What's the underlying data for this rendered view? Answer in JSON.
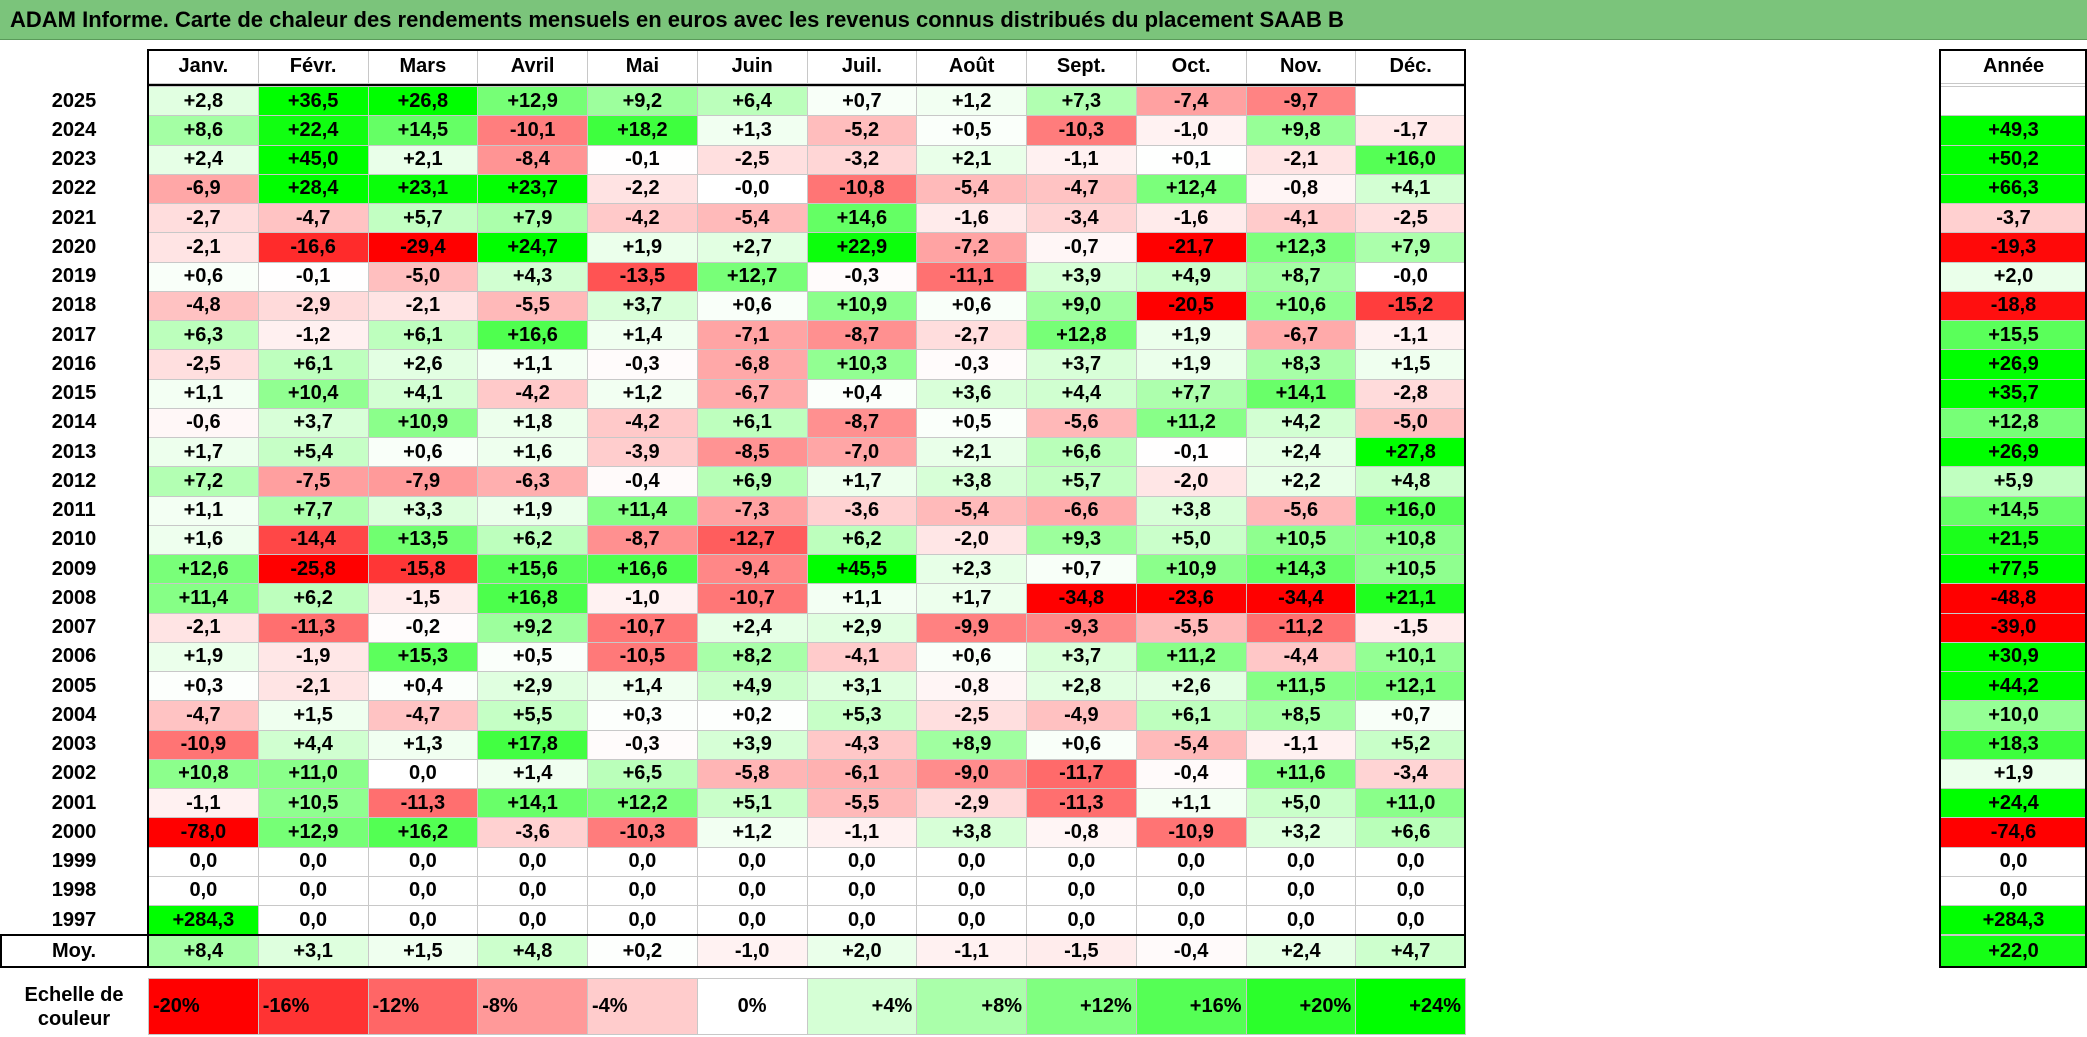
{
  "title": "ADAM Informe. Carte de chaleur des rendements mensuels en euros avec les revenus connus distribués du placement SAAB B",
  "chart_data": {
    "type": "heatmap",
    "title": "ADAM Informe. Carte de chaleur des rendements mensuels en euros avec les revenus connus distribués du placement SAAB B",
    "months": [
      "Janv.",
      "Févr.",
      "Mars",
      "Avril",
      "Mai",
      "Juin",
      "Juil.",
      "Août",
      "Sept.",
      "Oct.",
      "Nov.",
      "Déc."
    ],
    "year_header": "Année",
    "rows": [
      {
        "year": "2025",
        "values": [
          "+2,8",
          "+36,5",
          "+26,8",
          "+12,9",
          "+9,2",
          "+6,4",
          "+0,7",
          "+1,2",
          "+7,3",
          "-7,4",
          "-9,7",
          ""
        ],
        "annual": ""
      },
      {
        "year": "2024",
        "values": [
          "+8,6",
          "+22,4",
          "+14,5",
          "-10,1",
          "+18,2",
          "+1,3",
          "-5,2",
          "+0,5",
          "-10,3",
          "-1,0",
          "+9,8",
          "-1,7"
        ],
        "annual": "+49,3"
      },
      {
        "year": "2023",
        "values": [
          "+2,4",
          "+45,0",
          "+2,1",
          "-8,4",
          "-0,1",
          "-2,5",
          "-3,2",
          "+2,1",
          "-1,1",
          "+0,1",
          "-2,1",
          "+16,0"
        ],
        "annual": "+50,2"
      },
      {
        "year": "2022",
        "values": [
          "-6,9",
          "+28,4",
          "+23,1",
          "+23,7",
          "-2,2",
          "-0,0",
          "-10,8",
          "-5,4",
          "-4,7",
          "+12,4",
          "-0,8",
          "+4,1"
        ],
        "annual": "+66,3"
      },
      {
        "year": "2021",
        "values": [
          "-2,7",
          "-4,7",
          "+5,7",
          "+7,9",
          "-4,2",
          "-5,4",
          "+14,6",
          "-1,6",
          "-3,4",
          "-1,6",
          "-4,1",
          "-2,5"
        ],
        "annual": "-3,7"
      },
      {
        "year": "2020",
        "values": [
          "-2,1",
          "-16,6",
          "-29,4",
          "+24,7",
          "+1,9",
          "+2,7",
          "+22,9",
          "-7,2",
          "-0,7",
          "-21,7",
          "+12,3",
          "+7,9"
        ],
        "annual": "-19,3"
      },
      {
        "year": "2019",
        "values": [
          "+0,6",
          "-0,1",
          "-5,0",
          "+4,3",
          "-13,5",
          "+12,7",
          "-0,3",
          "-11,1",
          "+3,9",
          "+4,9",
          "+8,7",
          "-0,0"
        ],
        "annual": "+2,0"
      },
      {
        "year": "2018",
        "values": [
          "-4,8",
          "-2,9",
          "-2,1",
          "-5,5",
          "+3,7",
          "+0,6",
          "+10,9",
          "+0,6",
          "+9,0",
          "-20,5",
          "+10,6",
          "-15,2"
        ],
        "annual": "-18,8"
      },
      {
        "year": "2017",
        "values": [
          "+6,3",
          "-1,2",
          "+6,1",
          "+16,6",
          "+1,4",
          "-7,1",
          "-8,7",
          "-2,7",
          "+12,8",
          "+1,9",
          "-6,7",
          "-1,1"
        ],
        "annual": "+15,5"
      },
      {
        "year": "2016",
        "values": [
          "-2,5",
          "+6,1",
          "+2,6",
          "+1,1",
          "-0,3",
          "-6,8",
          "+10,3",
          "-0,3",
          "+3,7",
          "+1,9",
          "+8,3",
          "+1,5"
        ],
        "annual": "+26,9"
      },
      {
        "year": "2015",
        "values": [
          "+1,1",
          "+10,4",
          "+4,1",
          "-4,2",
          "+1,2",
          "-6,7",
          "+0,4",
          "+3,6",
          "+4,4",
          "+7,7",
          "+14,1",
          "-2,8"
        ],
        "annual": "+35,7"
      },
      {
        "year": "2014",
        "values": [
          "-0,6",
          "+3,7",
          "+10,9",
          "+1,8",
          "-4,2",
          "+6,1",
          "-8,7",
          "+0,5",
          "-5,6",
          "+11,2",
          "+4,2",
          "-5,0"
        ],
        "annual": "+12,8"
      },
      {
        "year": "2013",
        "values": [
          "+1,7",
          "+5,4",
          "+0,6",
          "+1,6",
          "-3,9",
          "-8,5",
          "-7,0",
          "+2,1",
          "+6,6",
          "-0,1",
          "+2,4",
          "+27,8"
        ],
        "annual": "+26,9"
      },
      {
        "year": "2012",
        "values": [
          "+7,2",
          "-7,5",
          "-7,9",
          "-6,3",
          "-0,4",
          "+6,9",
          "+1,7",
          "+3,8",
          "+5,7",
          "-2,0",
          "+2,2",
          "+4,8"
        ],
        "annual": "+5,9"
      },
      {
        "year": "2011",
        "values": [
          "+1,1",
          "+7,7",
          "+3,3",
          "+1,9",
          "+11,4",
          "-7,3",
          "-3,6",
          "-5,4",
          "-6,6",
          "+3,8",
          "-5,6",
          "+16,0"
        ],
        "annual": "+14,5"
      },
      {
        "year": "2010",
        "values": [
          "+1,6",
          "-14,4",
          "+13,5",
          "+6,2",
          "-8,7",
          "-12,7",
          "+6,2",
          "-2,0",
          "+9,3",
          "+5,0",
          "+10,5",
          "+10,8"
        ],
        "annual": "+21,5"
      },
      {
        "year": "2009",
        "values": [
          "+12,6",
          "-25,8",
          "-15,8",
          "+15,6",
          "+16,6",
          "-9,4",
          "+45,5",
          "+2,3",
          "+0,7",
          "+10,9",
          "+14,3",
          "+10,5"
        ],
        "annual": "+77,5"
      },
      {
        "year": "2008",
        "values": [
          "+11,4",
          "+6,2",
          "-1,5",
          "+16,8",
          "-1,0",
          "-10,7",
          "+1,1",
          "+1,7",
          "-34,8",
          "-23,6",
          "-34,4",
          "+21,1"
        ],
        "annual": "-48,8"
      },
      {
        "year": "2007",
        "values": [
          "-2,1",
          "-11,3",
          "-0,2",
          "+9,2",
          "-10,7",
          "+2,4",
          "+2,9",
          "-9,9",
          "-9,3",
          "-5,5",
          "-11,2",
          "-1,5"
        ],
        "annual": "-39,0"
      },
      {
        "year": "2006",
        "values": [
          "+1,9",
          "-1,9",
          "+15,3",
          "+0,5",
          "-10,5",
          "+8,2",
          "-4,1",
          "+0,6",
          "+3,7",
          "+11,2",
          "-4,4",
          "+10,1"
        ],
        "annual": "+30,9"
      },
      {
        "year": "2005",
        "values": [
          "+0,3",
          "-2,1",
          "+0,4",
          "+2,9",
          "+1,4",
          "+4,9",
          "+3,1",
          "-0,8",
          "+2,8",
          "+2,6",
          "+11,5",
          "+12,1"
        ],
        "annual": "+44,2"
      },
      {
        "year": "2004",
        "values": [
          "-4,7",
          "+1,5",
          "-4,7",
          "+5,5",
          "+0,3",
          "+0,2",
          "+5,3",
          "-2,5",
          "-4,9",
          "+6,1",
          "+8,5",
          "+0,7"
        ],
        "annual": "+10,0"
      },
      {
        "year": "2003",
        "values": [
          "-10,9",
          "+4,4",
          "+1,3",
          "+17,8",
          "-0,3",
          "+3,9",
          "-4,3",
          "+8,9",
          "+0,6",
          "-5,4",
          "-1,1",
          "+5,2"
        ],
        "annual": "+18,3"
      },
      {
        "year": "2002",
        "values": [
          "+10,8",
          "+11,0",
          "0,0",
          "+1,4",
          "+6,5",
          "-5,8",
          "-6,1",
          "-9,0",
          "-11,7",
          "-0,4",
          "+11,6",
          "-3,4"
        ],
        "annual": "+1,9"
      },
      {
        "year": "2001",
        "values": [
          "-1,1",
          "+10,5",
          "-11,3",
          "+14,1",
          "+12,2",
          "+5,1",
          "-5,5",
          "-2,9",
          "-11,3",
          "+1,1",
          "+5,0",
          "+11,0"
        ],
        "annual": "+24,4"
      },
      {
        "year": "2000",
        "values": [
          "-78,0",
          "+12,9",
          "+16,2",
          "-3,6",
          "-10,3",
          "+1,2",
          "-1,1",
          "+3,8",
          "-0,8",
          "-10,9",
          "+3,2",
          "+6,6"
        ],
        "annual": "-74,6"
      },
      {
        "year": "1999",
        "values": [
          "0,0",
          "0,0",
          "0,0",
          "0,0",
          "0,0",
          "0,0",
          "0,0",
          "0,0",
          "0,0",
          "0,0",
          "0,0",
          "0,0"
        ],
        "annual": "0,0"
      },
      {
        "year": "1998",
        "values": [
          "0,0",
          "0,0",
          "0,0",
          "0,0",
          "0,0",
          "0,0",
          "0,0",
          "0,0",
          "0,0",
          "0,0",
          "0,0",
          "0,0"
        ],
        "annual": "0,0"
      },
      {
        "year": "1997",
        "values": [
          "+284,3",
          "0,0",
          "0,0",
          "0,0",
          "0,0",
          "0,0",
          "0,0",
          "0,0",
          "0,0",
          "0,0",
          "0,0",
          "0,0"
        ],
        "annual": "+284,3"
      }
    ],
    "average": {
      "label": "Moy.",
      "values": [
        "+8,4",
        "+3,1",
        "+1,5",
        "+4,8",
        "+0,2",
        "-1,0",
        "+2,0",
        "-1,1",
        "-1,5",
        "-0,4",
        "+2,4",
        "+4,7"
      ],
      "annual": "+22,0"
    },
    "scale": {
      "label": "Echelle de\ncouleur",
      "items": [
        {
          "label": "-20%",
          "value": -20,
          "align": "left"
        },
        {
          "label": "-16%",
          "value": -16,
          "align": "left"
        },
        {
          "label": "-12%",
          "value": -12,
          "align": "left"
        },
        {
          "label": "-8%",
          "value": -8,
          "align": "left"
        },
        {
          "label": "-4%",
          "value": -4,
          "align": "left"
        },
        {
          "label": "0%",
          "value": 0,
          "align": "center"
        },
        {
          "label": "+4%",
          "value": 4,
          "align": "right"
        },
        {
          "label": "+8%",
          "value": 8,
          "align": "right"
        },
        {
          "label": "+12%",
          "value": 12,
          "align": "right"
        },
        {
          "label": "+16%",
          "value": 16,
          "align": "right"
        },
        {
          "label": "+20%",
          "value": 20,
          "align": "right"
        },
        {
          "label": "+24%",
          "value": 24,
          "align": "right"
        }
      ]
    },
    "colors": {
      "negative_max": "#ff0000",
      "zero": "#ffffff",
      "positive_max": "#00ff00"
    }
  }
}
